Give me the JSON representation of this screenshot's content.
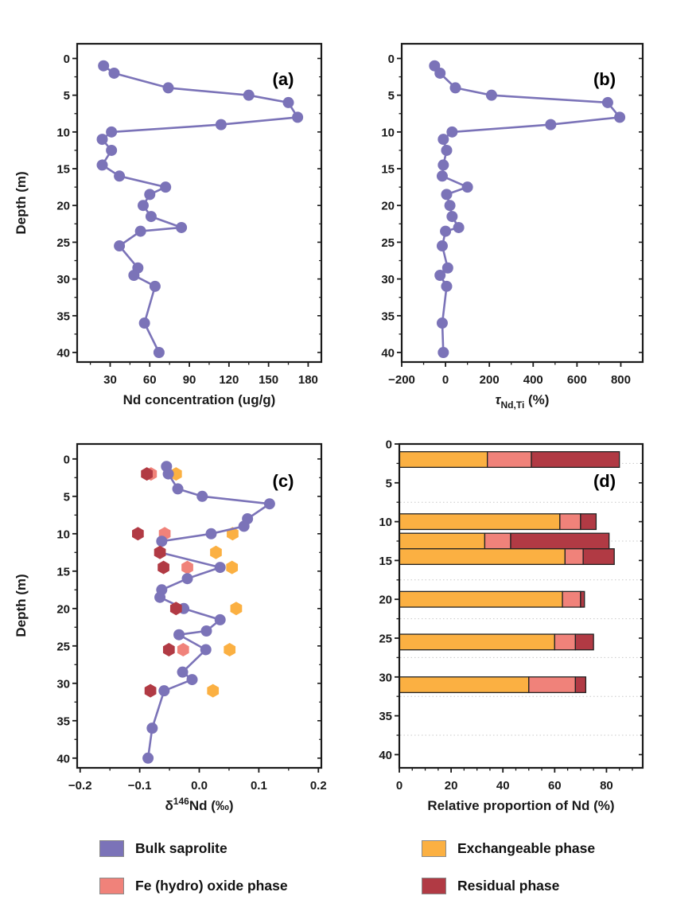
{
  "figure": {
    "title": "",
    "description": "Four-panel depth-profile figure of Nd geochemistry in a saprolite weathering profile"
  },
  "legend": {
    "items": [
      {
        "id": "bulk-saprolite",
        "label": "Bulk saprolite",
        "color": "#7b73b8"
      },
      {
        "id": "fe-hydro-oxide",
        "label": "Fe (hydro) oxide phase",
        "color": "#f0827a"
      },
      {
        "id": "exchangeable-phase",
        "label": "Exchangeable phase",
        "color": "#fbb042"
      },
      {
        "id": "residual-phase",
        "label": "Residual phase",
        "color": "#b13a44"
      }
    ]
  },
  "chart_data": [
    {
      "id": "a",
      "type": "line",
      "panel_label": "(a)",
      "xlabel": "Nd concentration (ug/g)",
      "xlabel_parts": [
        {
          "t": "Nd concentration (ug/g)"
        }
      ],
      "ylabel": "Depth (m)",
      "xlim": [
        5,
        190
      ],
      "xtick_values": [
        30,
        60,
        90,
        120,
        150,
        180
      ],
      "xtick_labels": [
        "30",
        "60",
        "90",
        "120",
        "150",
        "180"
      ],
      "x_minor_step": 15,
      "ylim": [
        -2,
        41.3
      ],
      "ytick_values": [
        0,
        5,
        10,
        15,
        20,
        25,
        30,
        35,
        40
      ],
      "y_minor_step": 2.5,
      "grid": false,
      "series": [
        {
          "name": "Bulk saprolite",
          "marker": "circle",
          "line": true,
          "color": "#7b73b8",
          "z": "line",
          "depths": [
            1,
            2,
            4,
            5,
            6,
            8,
            9,
            10,
            11,
            12.5,
            14.5,
            16,
            17.5,
            18.5,
            20,
            21.5,
            23,
            23.5,
            25.5,
            28.5,
            29.5,
            31,
            36,
            40
          ],
          "values": [
            25,
            33,
            74,
            135,
            165,
            172,
            114,
            31,
            24,
            31,
            24,
            37,
            72,
            60,
            55,
            61,
            84,
            53,
            37,
            51,
            48,
            64,
            56,
            67
          ]
        }
      ]
    },
    {
      "id": "b",
      "type": "line",
      "panel_label": "(b)",
      "xlabel": "τNd,Ti (%)",
      "xlabel_parts": [
        {
          "t": "τ",
          "italic": true
        },
        {
          "t": "Nd,Ti",
          "script": "sub"
        },
        {
          "t": " (%)"
        }
      ],
      "ylabel": "",
      "xlim": [
        -200,
        900
      ],
      "xtick_values": [
        -200,
        0,
        200,
        400,
        600,
        800
      ],
      "xtick_labels": [
        "−200",
        "0",
        "200",
        "400",
        "600",
        "800"
      ],
      "x_minor_step": 100,
      "ylim": [
        -2,
        41.3
      ],
      "ytick_values": [
        0,
        5,
        10,
        15,
        20,
        25,
        30,
        35,
        40
      ],
      "y_minor_step": 2.5,
      "grid": false,
      "series": [
        {
          "name": "Bulk saprolite",
          "marker": "circle",
          "line": true,
          "color": "#7b73b8",
          "z": "line",
          "depths": [
            1,
            2,
            4,
            5,
            6,
            8,
            9,
            10,
            11,
            12.5,
            14.5,
            16,
            17.5,
            18.5,
            20,
            21.5,
            23,
            23.5,
            25.5,
            28.5,
            29.5,
            31,
            36,
            40
          ],
          "values": [
            -50,
            -25,
            45,
            210,
            740,
            795,
            480,
            30,
            -10,
            5,
            -10,
            -15,
            100,
            5,
            20,
            30,
            60,
            0,
            -15,
            10,
            -25,
            5,
            -15,
            -10
          ]
        }
      ]
    },
    {
      "id": "c",
      "type": "scatter-line",
      "panel_label": "(c)",
      "xlabel": "δ146Nd (‰)",
      "xlabel_parts": [
        {
          "t": "δ"
        },
        {
          "t": "146",
          "script": "sup"
        },
        {
          "t": "Nd (‰)"
        }
      ],
      "ylabel": "Depth (m)",
      "xlim": [
        -0.205,
        0.205
      ],
      "xtick_values": [
        -0.2,
        -0.1,
        0,
        0.1,
        0.2
      ],
      "xtick_labels": [
        "−0.2",
        "−0.1",
        "0.0",
        "0.1",
        "0.2"
      ],
      "x_minor_step": 0.05,
      "ylim": [
        -2,
        41.3
      ],
      "ytick_values": [
        0,
        5,
        10,
        15,
        20,
        25,
        30,
        35,
        40
      ],
      "y_minor_step": 2.5,
      "grid": false,
      "series": [
        {
          "name": "Fe (hydro) oxide phase",
          "marker": "hexagon",
          "line": false,
          "color": "#f0827a",
          "z": "below",
          "depths": [
            2,
            10,
            14.5,
            25.5
          ],
          "values": [
            -0.081,
            -0.058,
            -0.02,
            -0.027
          ]
        },
        {
          "name": "Exchangeable phase",
          "marker": "hexagon",
          "line": false,
          "color": "#fbb042",
          "z": "below",
          "depths": [
            2,
            10,
            12.5,
            14.5,
            20,
            25.5,
            31
          ],
          "values": [
            -0.039,
            0.056,
            0.028,
            0.055,
            0.062,
            0.051,
            0.023
          ]
        },
        {
          "name": "Bulk saprolite",
          "marker": "circle",
          "line": true,
          "color": "#7b73b8",
          "z": "line",
          "depths": [
            1,
            2,
            4,
            5,
            6,
            8,
            9,
            10,
            11,
            12.5,
            14.5,
            16,
            17.5,
            18.5,
            20,
            21.5,
            23,
            23.5,
            25.5,
            28.5,
            29.5,
            31,
            36,
            40
          ],
          "values": [
            -0.055,
            -0.052,
            -0.036,
            0.005,
            0.118,
            0.081,
            0.075,
            0.02,
            -0.063,
            -0.066,
            0.035,
            -0.02,
            -0.063,
            -0.066,
            -0.026,
            0.035,
            0.012,
            -0.034,
            0.011,
            -0.028,
            -0.012,
            -0.059,
            -0.079,
            -0.086
          ]
        },
        {
          "name": "Residual phase",
          "marker": "hexagon",
          "line": false,
          "color": "#b13a44",
          "z": "above",
          "depths": [
            2,
            10,
            12.5,
            14.5,
            20,
            25.5,
            31
          ],
          "values": [
            -0.088,
            -0.103,
            -0.066,
            -0.06,
            -0.039,
            -0.051,
            -0.082
          ]
        }
      ]
    },
    {
      "id": "d",
      "type": "stacked-bar-horizontal",
      "panel_label": "(d)",
      "xlabel": "Relative proportion of Nd (%)",
      "xlabel_parts": [
        {
          "t": "Relative proportion of Nd (%)"
        }
      ],
      "ylabel": "",
      "xlim": [
        0,
        94
      ],
      "xtick_values": [
        0,
        20,
        40,
        60,
        80
      ],
      "xtick_labels": [
        "0",
        "20",
        "40",
        "60",
        "80"
      ],
      "x_minor_step": 5,
      "ylim": [
        0,
        41.7
      ],
      "ytick_values": [
        0,
        5,
        10,
        15,
        20,
        25,
        30,
        35,
        40
      ],
      "y_minor_step": 2.5,
      "grid": true,
      "grid_depths": [
        2.5,
        7.5,
        12.5,
        17.5,
        22.5,
        27.5,
        32.5,
        37.5
      ],
      "bar_depths": [
        2,
        10,
        12.5,
        14.5,
        20,
        25.5,
        31
      ],
      "bar_height_m": 1.3,
      "segments": [
        {
          "name": "Exchangeable phase",
          "color": "#fbb042",
          "values": [
            34,
            62,
            33,
            64,
            63,
            60,
            50
          ]
        },
        {
          "name": "Fe (hydro) oxide phase",
          "color": "#f0827a",
          "values": [
            17,
            8,
            10,
            7,
            7,
            8,
            18
          ]
        },
        {
          "name": "Residual phase",
          "color": "#b13a44",
          "values": [
            34,
            6,
            38,
            12,
            1.5,
            7,
            4
          ]
        }
      ]
    }
  ],
  "style_colors": {
    "frame": "#1a1a1a",
    "text": "#1a1a1a",
    "grid": "#c8c8c8"
  }
}
